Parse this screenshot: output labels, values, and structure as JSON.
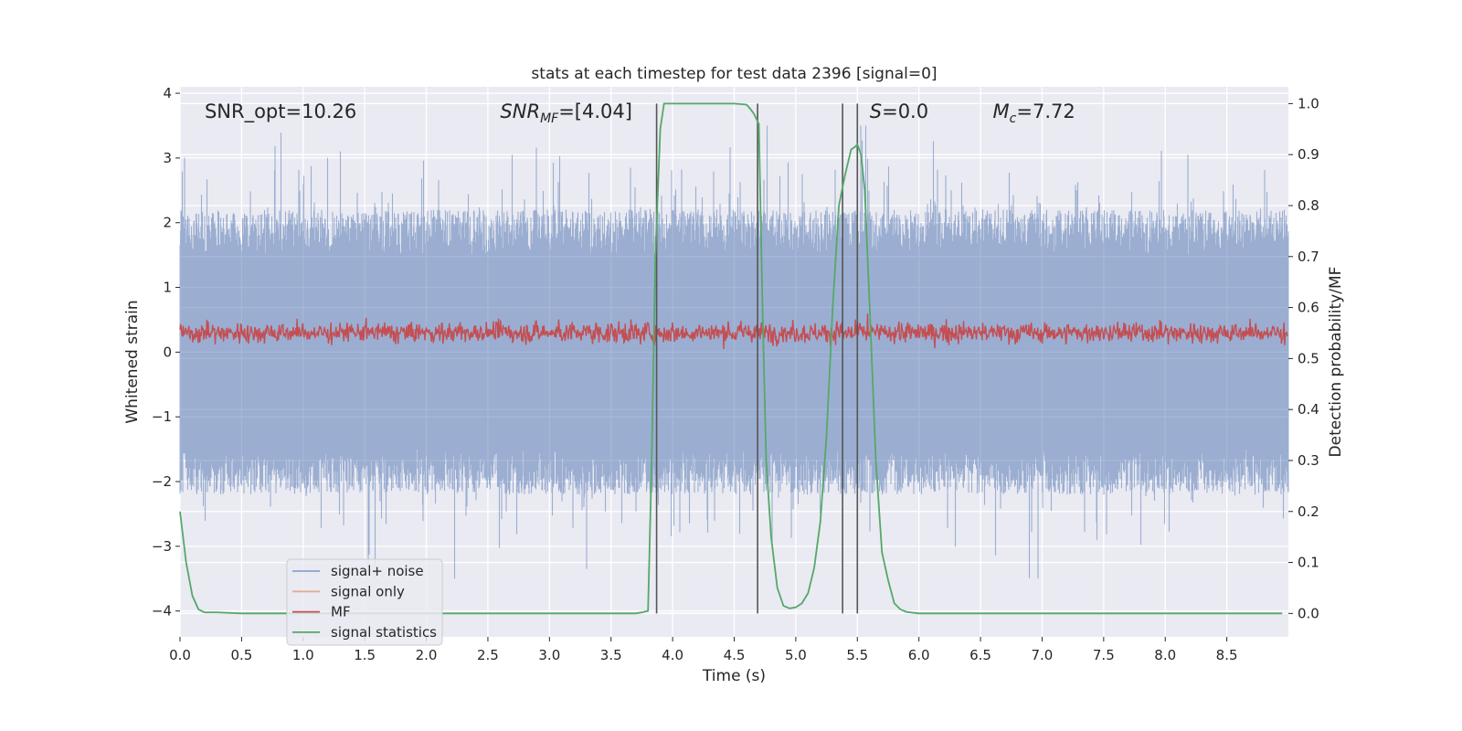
{
  "chart_data": {
    "type": "line",
    "title": "stats at each timestep for test data 2396 [signal=0]",
    "xlabel": "Time (s)",
    "ylabel": "Whitened strain",
    "y2label": "Detection probability/MF",
    "xlim": [
      0.0,
      9.0
    ],
    "ylim": [
      -4.4,
      4.1
    ],
    "y2lim": [
      -0.046,
      1.033
    ],
    "xticks": [
      0.0,
      0.5,
      1.0,
      1.5,
      2.0,
      2.5,
      3.0,
      3.5,
      4.0,
      4.5,
      5.0,
      5.5,
      6.0,
      6.5,
      7.0,
      7.5,
      8.0,
      8.5
    ],
    "xtick_labels": [
      "0.0",
      "0.5",
      "1.0",
      "1.5",
      "2.0",
      "2.5",
      "3.0",
      "3.5",
      "4.0",
      "4.5",
      "5.0",
      "5.5",
      "6.0",
      "6.5",
      "7.0",
      "7.5",
      "8.0",
      "8.5"
    ],
    "yticks": [
      -4,
      -3,
      -2,
      -1,
      0,
      1,
      2,
      3,
      4
    ],
    "ytick_labels": [
      "−4",
      "−3",
      "−2",
      "−1",
      "0",
      "1",
      "2",
      "3",
      "4"
    ],
    "y2ticks": [
      0.0,
      0.1,
      0.2,
      0.3,
      0.4,
      0.5,
      0.6,
      0.7,
      0.8,
      0.9,
      1.0
    ],
    "y2tick_labels": [
      "0.0",
      "0.1",
      "0.2",
      "0.3",
      "0.4",
      "0.5",
      "0.6",
      "0.7",
      "0.8",
      "0.9",
      "1.0"
    ],
    "grid": true,
    "legend_position": "lower-left",
    "annotations": [
      {
        "text": "SNR_opt=10.26",
        "x": 0.2,
        "y": 3.73
      },
      {
        "text": "SNR",
        "sub": "MF",
        "suffix": "=[4.04]",
        "italic": true,
        "x": 2.6,
        "y": 3.73
      },
      {
        "text": "S",
        "suffix": "=0.0",
        "italic": true,
        "x": 5.6,
        "y": 3.73
      },
      {
        "text": "M",
        "sub": "c",
        "suffix": "=7.72",
        "italic": true,
        "x": 6.6,
        "y": 3.73
      }
    ],
    "vlines_x": [
      3.87,
      4.69,
      5.38,
      5.5
    ],
    "vline_range_y2": [
      0.0,
      1.0
    ],
    "series": [
      {
        "name": "signal+ noise",
        "color": "#4c72b0",
        "alpha": 0.5,
        "amplitude": [
          -2.0,
          2.0
        ],
        "peak_range": [
          -3.5,
          3.5
        ]
      },
      {
        "name": "signal only",
        "color": "#dd8452",
        "values": []
      },
      {
        "name": "MF",
        "color": "#c44e52",
        "baseline": 0.3,
        "amplitude": 0.25
      },
      {
        "name": "signal statistics",
        "color": "#55a868",
        "axis": "y2",
        "x": [
          0.0,
          0.05,
          0.1,
          0.15,
          0.2,
          0.3,
          0.5,
          1.0,
          2.0,
          3.0,
          3.7,
          3.75,
          3.8,
          3.83,
          3.86,
          3.9,
          3.93,
          3.95,
          4.0,
          4.2,
          4.5,
          4.6,
          4.63,
          4.66,
          4.7,
          4.73,
          4.76,
          4.8,
          4.85,
          4.9,
          4.95,
          5.0,
          5.05,
          5.1,
          5.15,
          5.2,
          5.25,
          5.3,
          5.35,
          5.4,
          5.45,
          5.48,
          5.5,
          5.53,
          5.56,
          5.6,
          5.65,
          5.7,
          5.75,
          5.8,
          5.85,
          5.9,
          6.0,
          7.0,
          8.0,
          8.95
        ],
        "values": [
          0.2,
          0.1,
          0.035,
          0.008,
          0.002,
          0.002,
          0.0,
          0.0,
          0.0,
          0.0,
          0.0,
          0.002,
          0.005,
          0.3,
          0.7,
          0.95,
          1.0,
          1.0,
          1.0,
          1.0,
          1.0,
          0.998,
          0.99,
          0.98,
          0.96,
          0.6,
          0.3,
          0.15,
          0.05,
          0.015,
          0.01,
          0.012,
          0.02,
          0.04,
          0.09,
          0.18,
          0.35,
          0.6,
          0.8,
          0.86,
          0.91,
          0.915,
          0.92,
          0.9,
          0.83,
          0.6,
          0.3,
          0.12,
          0.065,
          0.02,
          0.008,
          0.003,
          0.0,
          0.0,
          0.0,
          0.0
        ]
      }
    ]
  }
}
